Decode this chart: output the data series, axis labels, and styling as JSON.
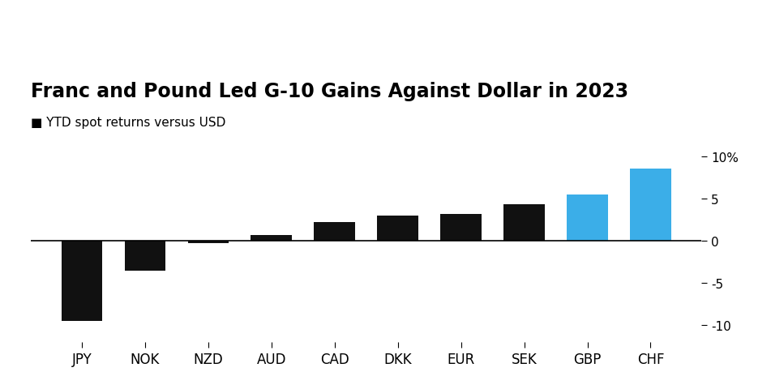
{
  "title": "Franc and Pound Led G-10 Gains Against Dollar in 2023",
  "subtitle": "■ YTD spot returns versus USD",
  "categories": [
    "JPY",
    "NOK",
    "NZD",
    "AUD",
    "CAD",
    "DKK",
    "EUR",
    "SEK",
    "GBP",
    "CHF"
  ],
  "values": [
    -9.5,
    -3.5,
    -0.3,
    0.7,
    2.2,
    3.0,
    3.2,
    4.3,
    5.5,
    8.6
  ],
  "bar_colors": [
    "#111111",
    "#111111",
    "#111111",
    "#111111",
    "#111111",
    "#111111",
    "#111111",
    "#111111",
    "#3BAEE8",
    "#3BAEE8"
  ],
  "ylim": [
    -12,
    12
  ],
  "yticks": [
    -10,
    -5,
    0,
    5,
    10
  ],
  "ytick_labels": [
    "-10",
    "-5",
    "0",
    "5",
    "10%"
  ],
  "background_color": "#ffffff",
  "title_fontsize": 17,
  "subtitle_fontsize": 11,
  "xtick_fontsize": 12,
  "ytick_fontsize": 11
}
